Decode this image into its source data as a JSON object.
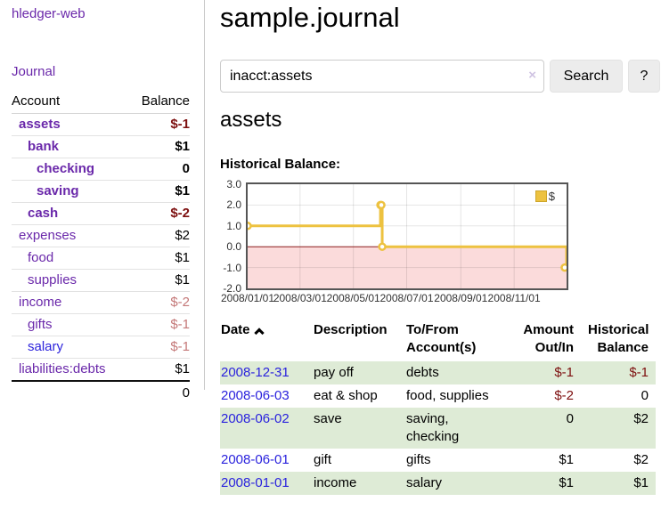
{
  "app": {
    "brand": "hledger-web",
    "nav_journal_label": "Journal"
  },
  "header": {
    "title": "sample.journal"
  },
  "search": {
    "value": "inacct:assets",
    "clear_icon": "×",
    "search_button_label": "Search",
    "help_button_label": "?"
  },
  "sidebar": {
    "header": {
      "account": "Account",
      "balance": "Balance"
    },
    "accounts": [
      {
        "name": "assets",
        "balance": "$-1",
        "level": 0,
        "bold": true
      },
      {
        "name": "bank",
        "balance": "$1",
        "level": 1,
        "bold": true
      },
      {
        "name": "checking",
        "balance": "0",
        "level": 2,
        "bold": true
      },
      {
        "name": "saving",
        "balance": "$1",
        "level": 2,
        "bold": true
      },
      {
        "name": "cash",
        "balance": "$-2",
        "level": 1,
        "bold": true
      },
      {
        "name": "expenses",
        "balance": "$2",
        "level": 0,
        "bold": false
      },
      {
        "name": "food",
        "balance": "$1",
        "level": 1,
        "bold": false
      },
      {
        "name": "supplies",
        "balance": "$1",
        "level": 1,
        "bold": false
      },
      {
        "name": "income",
        "balance": "$-2",
        "level": 0,
        "bold": false
      },
      {
        "name": "gifts",
        "balance": "$-1",
        "level": 1,
        "bold": false
      },
      {
        "name": "salary",
        "balance": "$-1",
        "level": 1,
        "bold": false
      },
      {
        "name": "liabilities:debts",
        "balance": "$1",
        "level": 0,
        "bold": false
      }
    ],
    "total": "0"
  },
  "register": {
    "heading": "assets",
    "chart_title": "Historical Balance:",
    "table": {
      "headers": {
        "date": "Date",
        "description": "Description",
        "accounts": "To/From Account(s)",
        "amount": "Amount Out/In",
        "balance": "Historical Balance"
      },
      "sort": "ascending",
      "rows": [
        {
          "date": "2008-12-31",
          "description": "pay off",
          "accounts": "debts",
          "amount": "$-1",
          "balance": "$-1"
        },
        {
          "date": "2008-06-03",
          "description": "eat & shop",
          "accounts": "food, supplies",
          "amount": "$-2",
          "balance": "0"
        },
        {
          "date": "2008-06-02",
          "description": "save",
          "accounts": "saving, checking",
          "amount": "0",
          "balance": "$2"
        },
        {
          "date": "2008-06-01",
          "description": "gift",
          "accounts": "gifts",
          "amount": "$1",
          "balance": "$2"
        },
        {
          "date": "2008-01-01",
          "description": "income",
          "accounts": "salary",
          "amount": "$1",
          "balance": "$1"
        }
      ]
    }
  },
  "chart_data": {
    "type": "line",
    "step": true,
    "title": "Historical Balance:",
    "series": [
      {
        "name": "$",
        "color": "#edc240",
        "points": [
          [
            "2008-01-01",
            1
          ],
          [
            "2008-06-01",
            2
          ],
          [
            "2008-06-02",
            2
          ],
          [
            "2008-06-03",
            0
          ],
          [
            "2008-12-31",
            -1
          ]
        ]
      }
    ],
    "ylim": [
      -2,
      3
    ],
    "yticks": [
      "3.0",
      "2.0",
      "1.0",
      "0.0",
      "-1.0",
      "-2.0"
    ],
    "xrange": [
      "2008-01-01",
      "2008-12-31"
    ],
    "xticks": [
      {
        "date": "2008-01-01",
        "label": "2008/01/01"
      },
      {
        "date": "2008-03-01",
        "label": "2008/03/01"
      },
      {
        "date": "2008-05-01",
        "label": "2008/05/01"
      },
      {
        "date": "2008-07-01",
        "label": "2008/07/01"
      },
      {
        "date": "2008-09-01",
        "label": "2008/09/01"
      },
      {
        "date": "2008-11-01",
        "label": "2008/11/01"
      }
    ],
    "legend": {
      "position": "top-right",
      "label": "$"
    },
    "grid": true,
    "zero_line_color": "#8b1b1b",
    "negative_region_color": "#fbdbdb"
  },
  "colors": {
    "link_purple": "#6a28aa",
    "link_blue": "#2a22dd",
    "negative_dark": "#7d0f0f",
    "negative_muted": "#c47878",
    "row_green": "#deebd6",
    "chart_yellow": "#edc240",
    "chart_negative_bg": "#fbdbdb",
    "zero_line": "#8b1b1b",
    "button_bg": "#ececec"
  }
}
